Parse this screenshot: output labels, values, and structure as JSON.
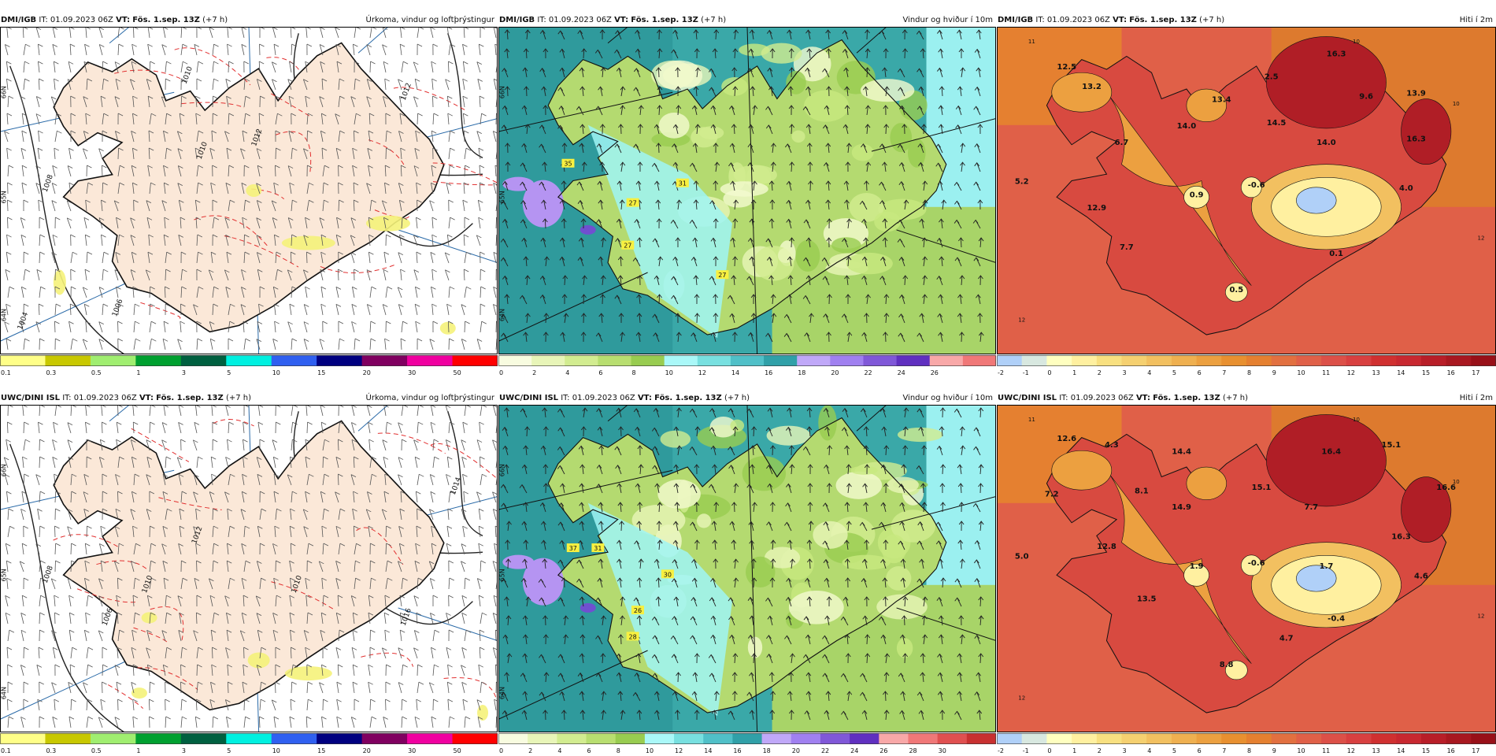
{
  "rows": [
    {
      "source": "DMI/IGB",
      "panels": [
        {
          "kind": "precip",
          "header": {
            "source": "DMI/IGB",
            "it_label": "IT:",
            "it": "01.09.2023 06Z",
            "vt_label": "VT:",
            "vt": "Fös. 1.sep. 13Z",
            "lead": "(+7 h)",
            "title": "Úrkoma, vindur og loftþrýstingur"
          },
          "isobar_labels": [
            "1010",
            "1012",
            "1010",
            "1012",
            "1008",
            "1006",
            "1004"
          ],
          "lat_labels": [
            "66N",
            "65N",
            "64N"
          ],
          "colorbar": {
            "ticks": [
              "0.1",
              "0.3",
              "0.5",
              "1",
              "3",
              "5",
              "10",
              "15",
              "20",
              "30",
              "50"
            ],
            "colors": [
              "#ffff88",
              "#c8c800",
              "#a0ee70",
              "#00a030",
              "#006040",
              "#00f0e0",
              "#3060f0",
              "#000080",
              "#800060",
              "#f000a0",
              "#ff0000"
            ]
          }
        },
        {
          "kind": "wind",
          "header": {
            "source": "DMI/IGB",
            "it_label": "IT:",
            "it": "01.09.2023 06Z",
            "vt_label": "VT:",
            "vt": "Fös. 1.sep. 13Z",
            "lead": "(+7 h)",
            "title": "Vindur og hviður í 10m"
          },
          "gust_labels": [
            "35",
            "31",
            "27",
            "27",
            "27"
          ],
          "lat_labels": [
            "66N",
            "65N",
            "64N"
          ],
          "colorbar": {
            "ticks": [
              "0",
              "2",
              "4",
              "6",
              "8",
              "10",
              "12",
              "14",
              "16",
              "18",
              "20",
              "22",
              "24",
              "26"
            ],
            "colors": [
              "#f8fce0",
              "#e8f5b8",
              "#d2ec90",
              "#b8de70",
              "#98cc50",
              "#aaf8f8",
              "#78e0e0",
              "#50c0c8",
              "#30a0a8",
              "#c0a8f8",
              "#a080f0",
              "#8058d8",
              "#6030c0",
              "#f8a8a8",
              "#f07878"
            ]
          }
        },
        {
          "kind": "temp",
          "header": {
            "source": "DMI/IGB",
            "it_label": "IT:",
            "it": "01.09.2023 06Z",
            "vt_label": "VT:",
            "vt": "Fös. 1.sep. 13Z",
            "lead": "(+7 h)",
            "title": "Hiti í 2m"
          },
          "temp_labels": [
            "12.5",
            "13.2",
            "16.3",
            "2.5",
            "13.4",
            "9.6",
            "13.9",
            "14.0",
            "14.5",
            "6.7",
            "14.0",
            "16.3",
            "5.2",
            "0.9",
            "-0.6",
            "4.0",
            "12.9",
            "7.7",
            "0.1",
            "0.5"
          ],
          "contour_labels": [
            "11",
            "10",
            "12",
            "10",
            "12"
          ],
          "colorbar": {
            "ticks": [
              "-2",
              "-1",
              "0",
              "1",
              "2",
              "3",
              "4",
              "5",
              "6",
              "7",
              "8",
              "9",
              "10",
              "11",
              "12",
              "13",
              "14",
              "15",
              "16",
              "17"
            ],
            "colors": [
              "#b0d0f8",
              "#d8e8e0",
              "#ffffc0",
              "#fff0a0",
              "#f8e080",
              "#f5d070",
              "#f2c060",
              "#efb050",
              "#eca040",
              "#e89030",
              "#e58030",
              "#e27040",
              "#e06048",
              "#dc5048",
              "#d84040",
              "#d03030",
              "#c82830",
              "#b81e28",
              "#a81820",
              "#981018"
            ]
          }
        }
      ]
    },
    {
      "source": "UWC/DINI ISL",
      "panels": [
        {
          "kind": "precip",
          "header": {
            "source": "UWC/DINI ISL",
            "it_label": "IT:",
            "it": "01.09.2023 06Z",
            "vt_label": "VT:",
            "vt": "Fös. 1.sep. 13Z",
            "lead": "(+7 h)",
            "title": "Úrkoma, vindur og loftþrýstingur"
          },
          "isobar_labels": [
            "1010",
            "1012",
            "1014",
            "1010",
            "1008",
            "1006",
            "1016"
          ],
          "lat_labels": [
            "66N",
            "65N",
            "64N"
          ],
          "colorbar": {
            "ticks": [
              "0.1",
              "0.3",
              "0.5",
              "1",
              "3",
              "5",
              "10",
              "15",
              "20",
              "30",
              "50"
            ],
            "colors": [
              "#ffff88",
              "#c8c800",
              "#a0ee70",
              "#00a030",
              "#006040",
              "#00f0e0",
              "#3060f0",
              "#000080",
              "#800060",
              "#f000a0",
              "#ff0000"
            ]
          }
        },
        {
          "kind": "wind",
          "header": {
            "source": "UWC/DINI ISL",
            "it_label": "IT:",
            "it": "01.09.2023 06Z",
            "vt_label": "VT:",
            "vt": "Fös. 1.sep. 13Z",
            "lead": "(+7 h)",
            "title": "Vindur og hviður í 10m"
          },
          "gust_labels": [
            "37",
            "31",
            "30",
            "26",
            "28"
          ],
          "lat_labels": [
            "66N",
            "65N",
            "64N"
          ],
          "colorbar": {
            "ticks": [
              "0",
              "2",
              "4",
              "6",
              "8",
              "10",
              "12",
              "14",
              "16",
              "18",
              "20",
              "22",
              "24",
              "26",
              "28",
              "30"
            ],
            "colors": [
              "#f8fce0",
              "#e8f5b8",
              "#d2ec90",
              "#b8de70",
              "#98cc50",
              "#aaf8f8",
              "#78e0e0",
              "#50c0c8",
              "#30a0a8",
              "#c0a8f8",
              "#a080f0",
              "#8058d8",
              "#6030c0",
              "#f8a8a8",
              "#f07878",
              "#e05050",
              "#c83030"
            ]
          }
        },
        {
          "kind": "temp",
          "header": {
            "source": "UWC/DINI ISL",
            "it_label": "IT:",
            "it": "01.09.2023 06Z",
            "vt_label": "VT:",
            "vt": "Fös. 1.sep. 13Z",
            "lead": "(+7 h)",
            "title": "Hiti í 2m"
          },
          "temp_labels": [
            "12.6",
            "4.3",
            "14.4",
            "16.4",
            "15.1",
            "7.2",
            "8.1",
            "15.1",
            "16.6",
            "14.9",
            "7.7",
            "12.8",
            "16.3",
            "5.0",
            "1.9",
            "-0.6",
            "1.7",
            "4.6",
            "13.5",
            "-0.4",
            "4.7",
            "8.8"
          ],
          "contour_labels": [
            "11",
            "10",
            "12",
            "10",
            "12"
          ],
          "colorbar": {
            "ticks": [
              "-2",
              "-1",
              "0",
              "1",
              "2",
              "3",
              "4",
              "5",
              "6",
              "7",
              "8",
              "9",
              "10",
              "11",
              "12",
              "13",
              "14",
              "15",
              "16",
              "17"
            ],
            "colors": [
              "#b0d0f8",
              "#d8e8e0",
              "#ffffc0",
              "#fff0a0",
              "#f8e080",
              "#f5d070",
              "#f2c060",
              "#efb050",
              "#eca040",
              "#e89030",
              "#e58030",
              "#e27040",
              "#e06048",
              "#dc5048",
              "#d84040",
              "#d03030",
              "#c82830",
              "#b81e28",
              "#a81820",
              "#981018"
            ]
          }
        }
      ]
    }
  ]
}
